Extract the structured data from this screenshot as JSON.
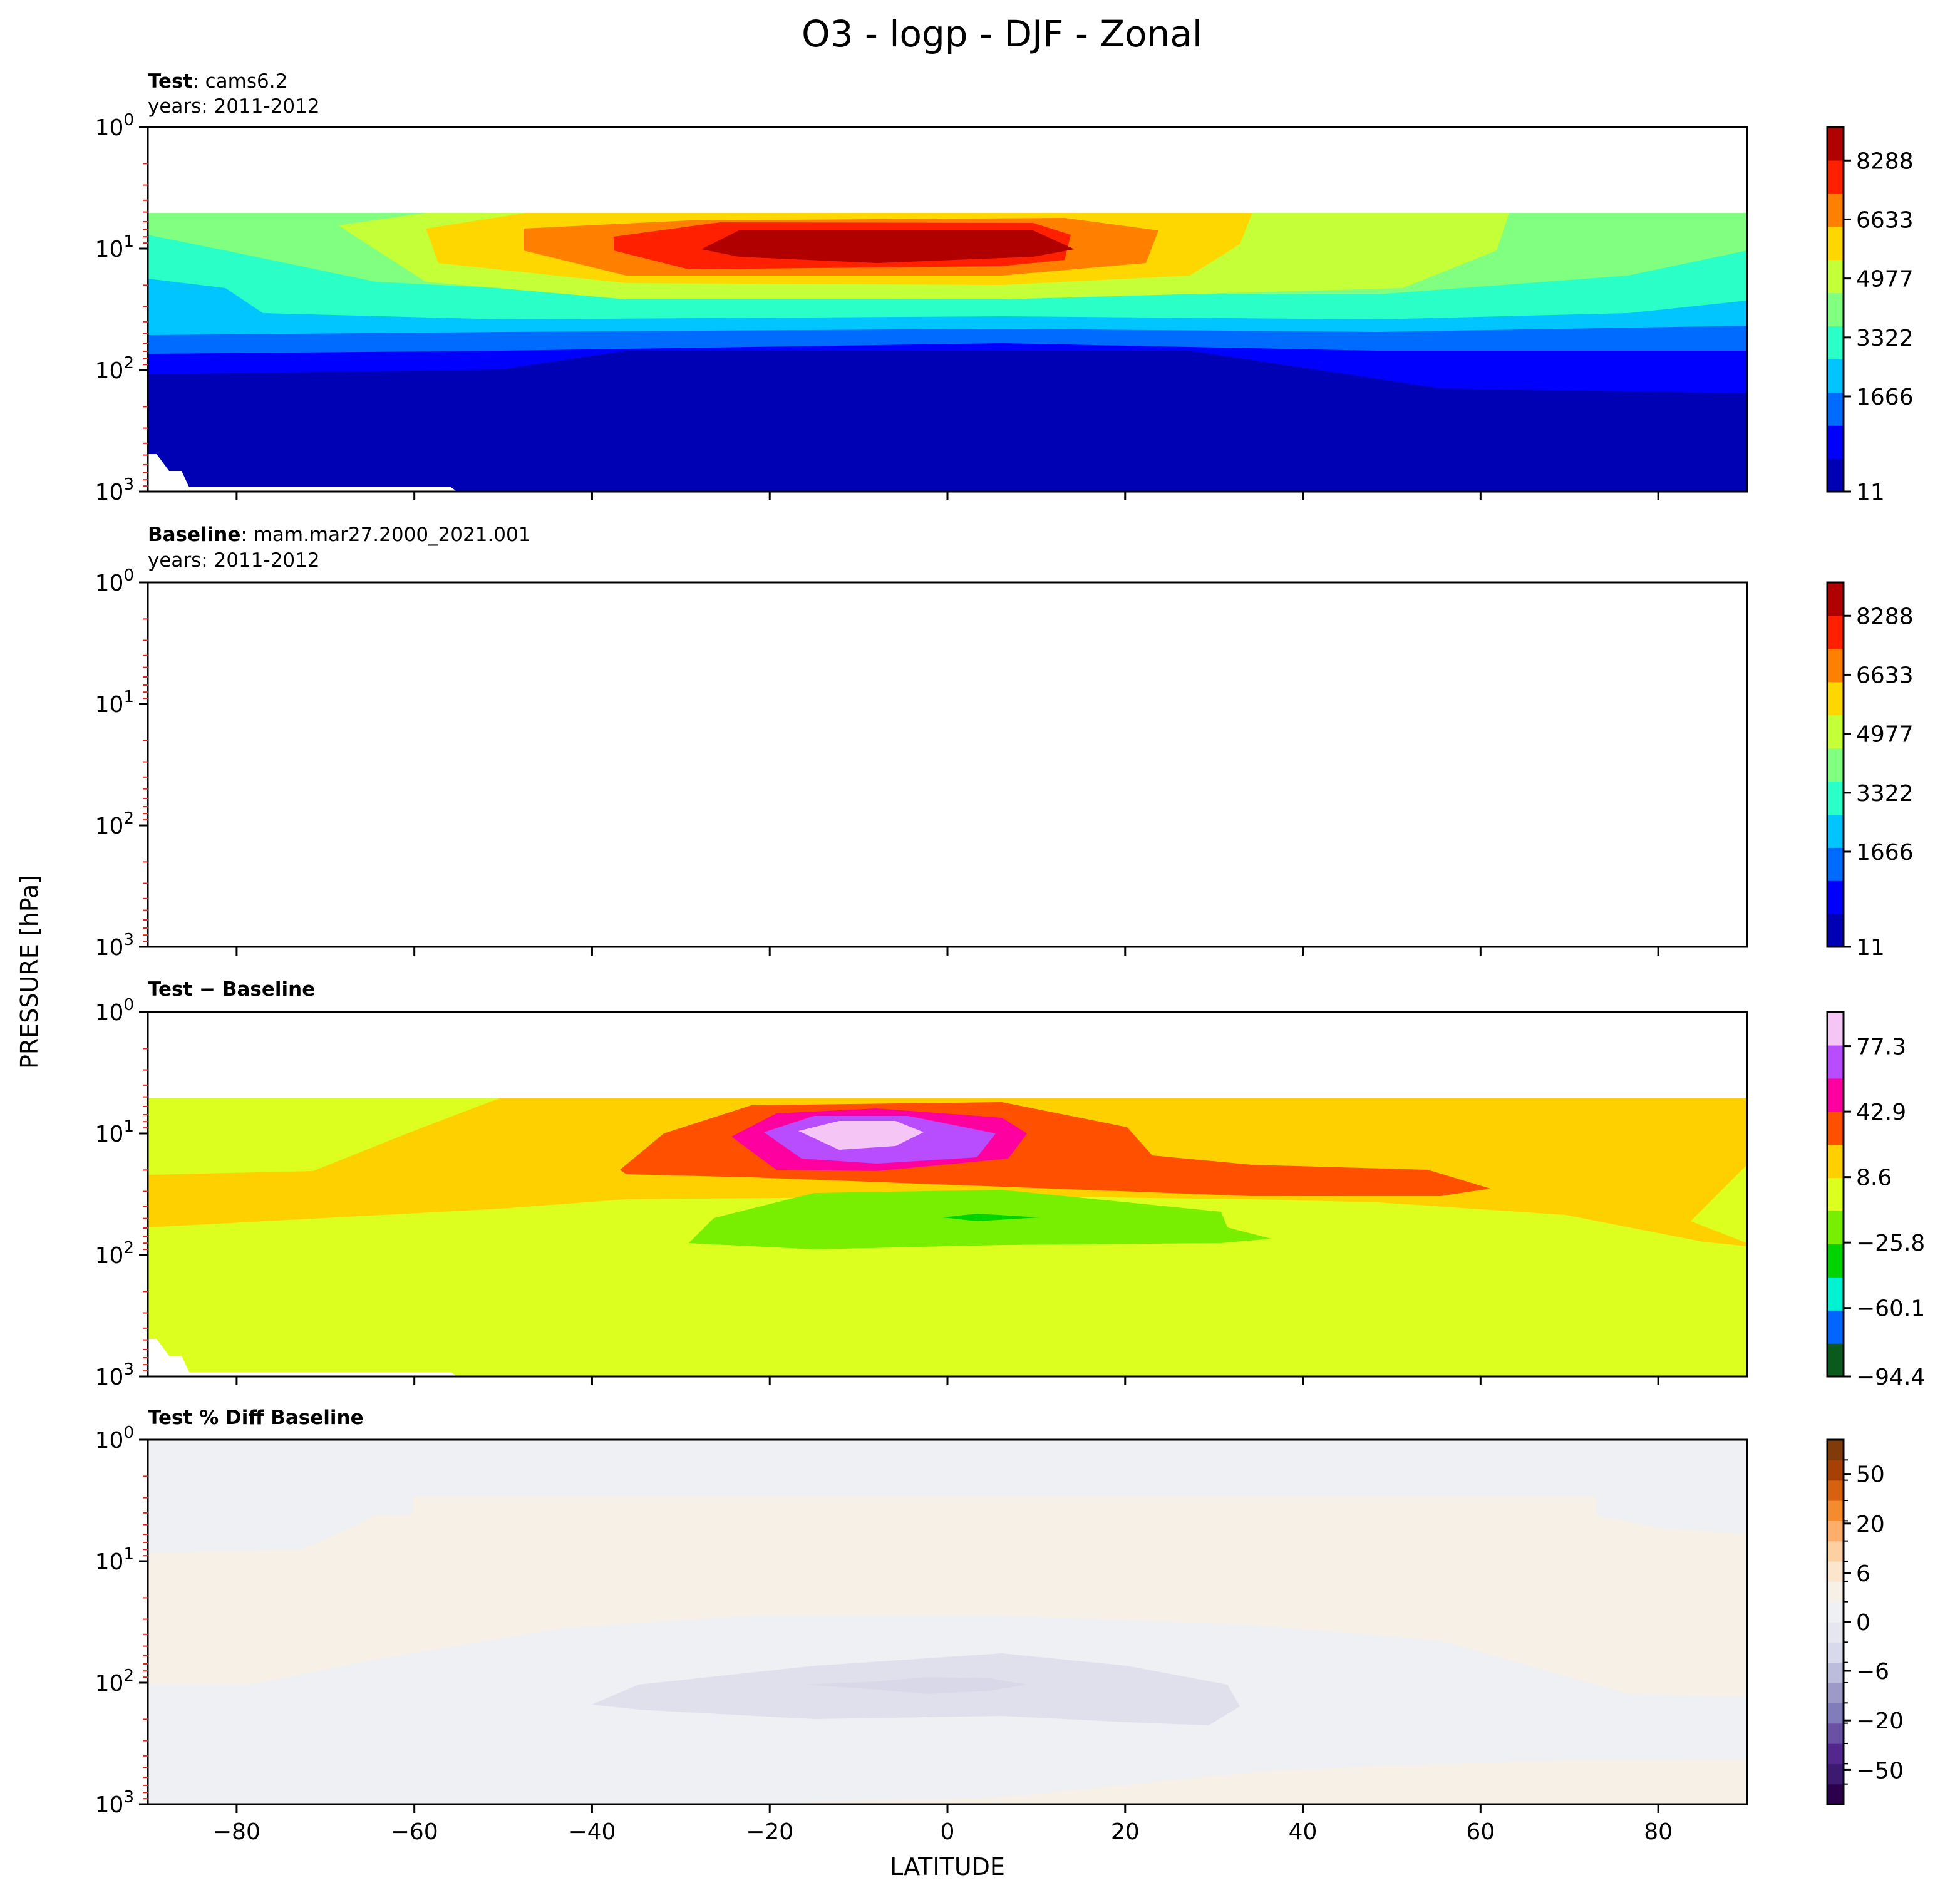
{
  "figure": {
    "title": "O3 - logp - DJF - Zonal",
    "xlabel": "LATITUDE",
    "ylabel": "PRESSURE [hPa]"
  },
  "chart_data": [
    {
      "type": "heatmap",
      "title_bold": "Test",
      "title_rest": ": cams6.2",
      "subtitle": "years: 2011-2012",
      "x_ticks": [
        -80,
        -60,
        -40,
        -20,
        0,
        20,
        40,
        60,
        80
      ],
      "xlim": [
        -90,
        90
      ],
      "ylim": [
        1000,
        1
      ],
      "yscale": "log",
      "y_tick_labels": [
        "10^0",
        "10^1",
        "10^2",
        "10^3"
      ],
      "colorbar_ticks": [
        "8288",
        "6633",
        "4977",
        "3322",
        "1666",
        "11"
      ],
      "colorbar_colors": [
        "#0000b4",
        "#0000ff",
        "#006cff",
        "#00c5ff",
        "#2affc8",
        "#80ff80",
        "#c5ff37",
        "#ffd700",
        "#ff8000",
        "#ff2000",
        "#b00000"
      ],
      "grid": false
    },
    {
      "type": "heatmap",
      "title_bold": "Baseline",
      "title_rest": ": mam.mar27.2000_2021.001",
      "subtitle": "years: 2011-2012",
      "x_ticks": [
        -80,
        -60,
        -40,
        -20,
        0,
        20,
        40,
        60,
        80
      ],
      "xlim": [
        -90,
        90
      ],
      "ylim": [
        1000,
        1
      ],
      "yscale": "log",
      "y_tick_labels": [
        "10^0",
        "10^1",
        "10^2",
        "10^3"
      ],
      "colorbar_ticks": [
        "8288",
        "6633",
        "4977",
        "3322",
        "1666",
        "11"
      ],
      "colorbar_colors": [
        "#0000b4",
        "#0000ff",
        "#006cff",
        "#00c5ff",
        "#2affc8",
        "#80ff80",
        "#c5ff37",
        "#ffd700",
        "#ff8000",
        "#ff2000",
        "#b00000"
      ],
      "grid": false
    },
    {
      "type": "heatmap",
      "title_bold": "Test − Baseline",
      "title_rest": "",
      "subtitle": "",
      "x_ticks": [
        -80,
        -60,
        -40,
        -20,
        0,
        20,
        40,
        60,
        80
      ],
      "xlim": [
        -90,
        90
      ],
      "ylim": [
        1000,
        1
      ],
      "yscale": "log",
      "y_tick_labels": [
        "10^0",
        "10^1",
        "10^2",
        "10^3"
      ],
      "colorbar_ticks": [
        "77.3",
        "42.9",
        "8.6",
        "−25.8",
        "−60.1",
        "−94.4"
      ],
      "colorbar_colors": [
        "#0a5a1e",
        "#0066ff",
        "#00f2d2",
        "#00d400",
        "#78ee00",
        "#dcff20",
        "#ffd000",
        "#ff5000",
        "#ff00a0",
        "#b84cff",
        "#f5c6f5"
      ],
      "grid": false
    },
    {
      "type": "heatmap",
      "title_bold": "Test % Diff Baseline",
      "title_rest": "",
      "subtitle": "",
      "x_ticks": [
        -80,
        -60,
        -40,
        -20,
        0,
        20,
        40,
        60,
        80
      ],
      "xlim": [
        -90,
        90
      ],
      "ylim": [
        1000,
        1
      ],
      "yscale": "log",
      "y_tick_labels": [
        "10^0",
        "10^1",
        "10^2",
        "10^3"
      ],
      "colorbar_ticks": [
        "50",
        "20",
        "6",
        "0",
        "−6",
        "−20",
        "−50"
      ],
      "colorbar_colors": [
        "#2d004b",
        "#3b1a70",
        "#54278f",
        "#6a51a3",
        "#807dba",
        "#9e9ac8",
        "#bcbddc",
        "#d8daeb",
        "#e6e6f0",
        "#eff0f4",
        "#f7f0e6",
        "#fbe5cc",
        "#fdd0a2",
        "#fdae6b",
        "#f48c2e",
        "#d6620f",
        "#a64005",
        "#7f3b08"
      ],
      "grid": false
    }
  ]
}
